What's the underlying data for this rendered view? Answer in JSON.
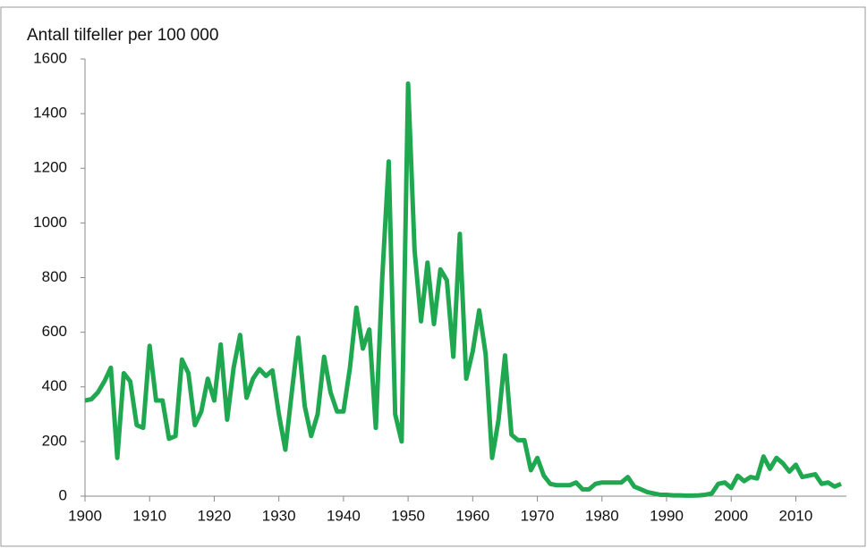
{
  "chart_data": {
    "type": "line",
    "title": "Antall tilfeller per 100 000",
    "x": [
      1900,
      1901,
      1902,
      1903,
      1904,
      1905,
      1906,
      1907,
      1908,
      1909,
      1910,
      1911,
      1912,
      1913,
      1914,
      1915,
      1916,
      1917,
      1918,
      1919,
      1920,
      1921,
      1922,
      1923,
      1924,
      1925,
      1926,
      1927,
      1928,
      1929,
      1930,
      1931,
      1932,
      1933,
      1934,
      1935,
      1936,
      1937,
      1938,
      1939,
      1940,
      1941,
      1942,
      1943,
      1944,
      1945,
      1946,
      1947,
      1948,
      1949,
      1950,
      1951,
      1952,
      1953,
      1954,
      1955,
      1956,
      1957,
      1958,
      1959,
      1960,
      1961,
      1962,
      1963,
      1964,
      1965,
      1966,
      1967,
      1968,
      1969,
      1970,
      1971,
      1972,
      1973,
      1974,
      1975,
      1976,
      1977,
      1978,
      1979,
      1980,
      1981,
      1982,
      1983,
      1984,
      1985,
      1986,
      1987,
      1988,
      1989,
      1990,
      1991,
      1992,
      1993,
      1994,
      1995,
      1996,
      1997,
      1998,
      1999,
      2000,
      2001,
      2002,
      2003,
      2004,
      2005,
      2006,
      2007,
      2008,
      2009,
      2010,
      2011,
      2012,
      2013,
      2014,
      2015,
      2016,
      2017
    ],
    "series": [
      {
        "name": null,
        "color": "#1fa84f",
        "values": [
          350,
          355,
          380,
          420,
          470,
          140,
          450,
          420,
          260,
          250,
          550,
          350,
          350,
          210,
          220,
          500,
          450,
          260,
          310,
          430,
          350,
          555,
          280,
          470,
          590,
          360,
          430,
          465,
          440,
          460,
          300,
          170,
          380,
          580,
          330,
          220,
          300,
          510,
          380,
          310,
          310,
          470,
          690,
          540,
          610,
          250,
          800,
          1225,
          300,
          200,
          1510,
          900,
          640,
          855,
          630,
          830,
          790,
          510,
          960,
          430,
          530,
          680,
          520,
          140,
          280,
          515,
          225,
          205,
          205,
          95,
          140,
          75,
          45,
          40,
          40,
          40,
          50,
          25,
          25,
          45,
          50,
          50,
          50,
          50,
          70,
          35,
          25,
          15,
          10,
          5,
          5,
          3,
          3,
          2,
          2,
          3,
          5,
          10,
          45,
          50,
          30,
          75,
          55,
          70,
          65,
          145,
          100,
          140,
          120,
          90,
          115,
          70,
          75,
          80,
          45,
          50,
          35,
          45
        ]
      }
    ],
    "xlim": [
      1900,
      2017
    ],
    "xticks": [
      1900,
      1910,
      1920,
      1930,
      1940,
      1950,
      1960,
      1970,
      1980,
      1990,
      2000,
      2010
    ],
    "ylim": [
      0,
      1600
    ],
    "yticks": [
      0,
      200,
      400,
      600,
      800,
      1000,
      1200,
      1400,
      1600
    ],
    "grid": false
  }
}
